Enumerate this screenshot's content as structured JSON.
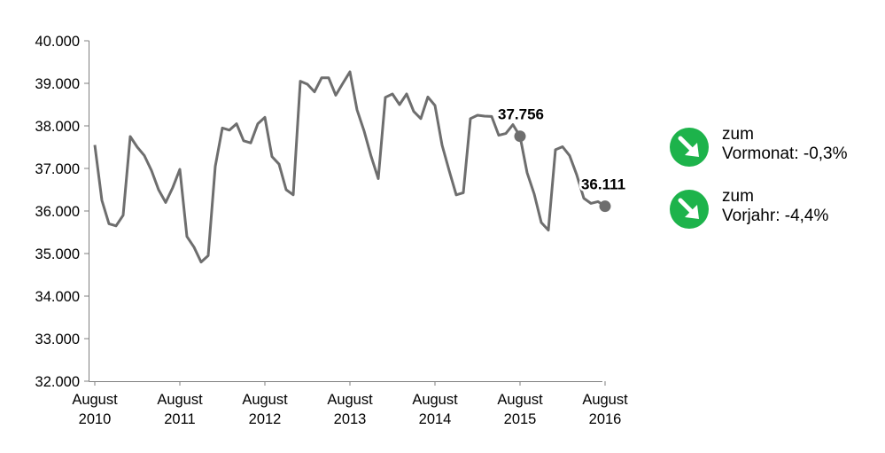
{
  "chart_data": {
    "type": "line",
    "title": "",
    "xlabel": "",
    "ylabel": "",
    "ylim": [
      32000,
      40000
    ],
    "y_ticks": [
      "32.000",
      "33.000",
      "34.000",
      "35.000",
      "36.000",
      "37.000",
      "38.000",
      "39.000",
      "40.000"
    ],
    "x_ticks": [
      {
        "line1": "August",
        "line2": "2010"
      },
      {
        "line1": "August",
        "line2": "2011"
      },
      {
        "line1": "August",
        "line2": "2012"
      },
      {
        "line1": "August",
        "line2": "2013"
      },
      {
        "line1": "August",
        "line2": "2014"
      },
      {
        "line1": "August",
        "line2": "2015"
      },
      {
        "line1": "August",
        "line2": "2016"
      }
    ],
    "grid": false,
    "line_color": "#6e6e6e",
    "series": [
      {
        "values": [
          37550,
          36250,
          35700,
          35650,
          35900,
          37750,
          37500,
          37300,
          36950,
          36500,
          36200,
          36550,
          36980,
          35400,
          35150,
          34800,
          34950,
          37050,
          37950,
          37900,
          38050,
          37650,
          37600,
          38050,
          38200,
          37280,
          37100,
          36500,
          36380,
          39050,
          38980,
          38800,
          39130,
          39130,
          38720,
          39000,
          39270,
          38380,
          37880,
          37280,
          36760,
          38670,
          38750,
          38500,
          38750,
          38340,
          38170,
          38680,
          38480,
          37550,
          36950,
          36380,
          36430,
          38170,
          38250,
          38230,
          38220,
          37780,
          37820,
          38030,
          37756,
          36900,
          36400,
          35730,
          35550,
          37440,
          37510,
          37300,
          36850,
          36300,
          36180,
          36220,
          36111
        ]
      }
    ],
    "annotations": [
      {
        "label": "37.756",
        "x_index": 60,
        "value": 37756
      },
      {
        "label": "36.111",
        "x_index": 72,
        "value": 36111
      }
    ]
  },
  "badges": [
    {
      "line1": "zum",
      "line2": "Vormonat:  -0,3%",
      "color": "#1db34b",
      "icon": "arrow-down-right-icon"
    },
    {
      "line1": "zum",
      "line2": "Vorjahr: -4,4%",
      "color": "#1db34b",
      "icon": "arrow-down-right-icon"
    }
  ]
}
